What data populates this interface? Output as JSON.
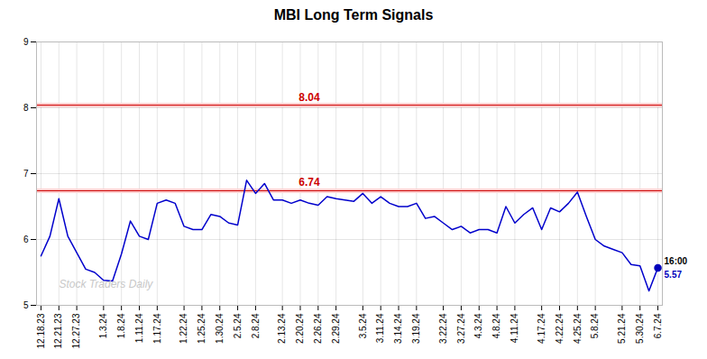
{
  "chart_data": {
    "type": "line",
    "title": "MBI Long Term Signals",
    "categories": [
      "12.18.23",
      null,
      "12.21.23",
      null,
      "12.27.23",
      null,
      null,
      "1.3.24",
      null,
      "1.8.24",
      null,
      "1.11.24",
      null,
      "1.17.24",
      null,
      null,
      "1.22.24",
      null,
      "1.25.24",
      null,
      "1.30.24",
      null,
      "2.5.24",
      null,
      "2.8.24",
      null,
      null,
      "2.13.24",
      null,
      "2.20.24",
      null,
      "2.26.24",
      null,
      "2.29.24",
      null,
      null,
      "3.5.24",
      null,
      "3.11.24",
      null,
      "3.14.24",
      null,
      "3.19.24",
      null,
      null,
      "3.22.24",
      null,
      "3.27.24",
      null,
      "4.3.24",
      null,
      "4.8.24",
      null,
      "4.11.24",
      null,
      null,
      "4.17.24",
      null,
      "4.22.24",
      null,
      "4.25.24",
      null,
      "5.8.24",
      null,
      null,
      "5.21.24",
      null,
      "5.30.24",
      null,
      "6.7.24"
    ],
    "values": [
      5.75,
      6.05,
      6.62,
      6.05,
      5.8,
      5.55,
      5.5,
      5.38,
      5.37,
      5.78,
      6.28,
      6.05,
      6.0,
      6.55,
      6.6,
      6.55,
      6.2,
      6.15,
      6.15,
      6.38,
      6.35,
      6.25,
      6.22,
      6.9,
      6.7,
      6.85,
      6.6,
      6.6,
      6.55,
      6.6,
      6.55,
      6.52,
      6.65,
      6.62,
      6.6,
      6.58,
      6.7,
      6.55,
      6.65,
      6.55,
      6.5,
      6.5,
      6.55,
      6.32,
      6.35,
      6.25,
      6.15,
      6.2,
      6.1,
      6.15,
      6.15,
      6.1,
      6.5,
      6.25,
      6.38,
      6.48,
      6.15,
      6.48,
      6.42,
      6.55,
      6.72,
      6.35,
      6.0,
      5.9,
      5.85,
      5.8,
      5.62,
      5.6,
      5.22,
      5.57
    ],
    "color": "#0000cc",
    "hlines": [
      {
        "value": 8.04,
        "label": "8.04",
        "color": "#cc0000",
        "band_color": "#ffd0d0"
      },
      {
        "value": 6.74,
        "label": "6.74",
        "color": "#cc0000",
        "band_color": "#ffd0d0"
      }
    ],
    "last_point": {
      "time_label": "16:00",
      "value": 5.57,
      "color": "#0000bb"
    },
    "watermark": {
      "text": "Stock Traders Daily",
      "color": "#c8c8c8"
    },
    "ylim": [
      5,
      9
    ],
    "yticks": [
      5,
      6,
      7,
      8,
      9
    ],
    "grid": true
  }
}
